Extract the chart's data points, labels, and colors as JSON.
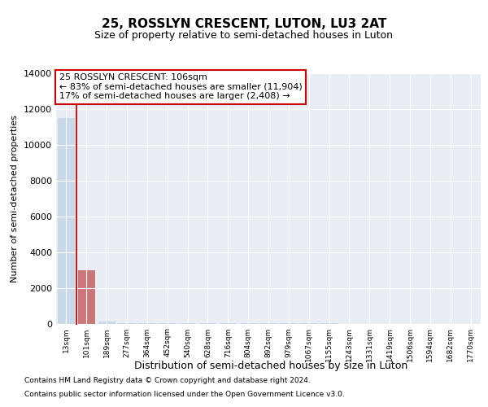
{
  "title": "25, ROSSLYN CRESCENT, LUTON, LU3 2AT",
  "subtitle": "Size of property relative to semi-detached houses in Luton",
  "xlabel": "Distribution of semi-detached houses by size in Luton",
  "ylabel": "Number of semi-detached properties",
  "categories": [
    "13sqm",
    "101sqm",
    "189sqm",
    "277sqm",
    "364sqm",
    "452sqm",
    "540sqm",
    "628sqm",
    "716sqm",
    "804sqm",
    "892sqm",
    "979sqm",
    "1067sqm",
    "1155sqm",
    "1243sqm",
    "1331sqm",
    "1419sqm",
    "1506sqm",
    "1594sqm",
    "1682sqm",
    "1770sqm"
  ],
  "values": [
    11500,
    3000,
    100,
    10,
    5,
    3,
    2,
    2,
    1,
    1,
    1,
    1,
    1,
    1,
    0,
    0,
    0,
    0,
    0,
    0,
    0
  ],
  "bar_color": "#c8d8e8",
  "highlight_bar_index": 1,
  "highlight_bar_color": "#c87878",
  "annotation_text_line1": "25 ROSSLYN CRESCENT: 106sqm",
  "annotation_text_line2": "← 83% of semi-detached houses are smaller (11,904)",
  "annotation_text_line3": "17% of semi-detached houses are larger (2,408) →",
  "annotation_box_color": "#cc0000",
  "ylim": [
    0,
    14000
  ],
  "yticks": [
    0,
    2000,
    4000,
    6000,
    8000,
    10000,
    12000,
    14000
  ],
  "background_color": "#ffffff",
  "plot_bg_color": "#e8eef4",
  "grid_color": "#ffffff",
  "footer_line1": "Contains HM Land Registry data © Crown copyright and database right 2024.",
  "footer_line2": "Contains public sector information licensed under the Open Government Licence v3.0."
}
